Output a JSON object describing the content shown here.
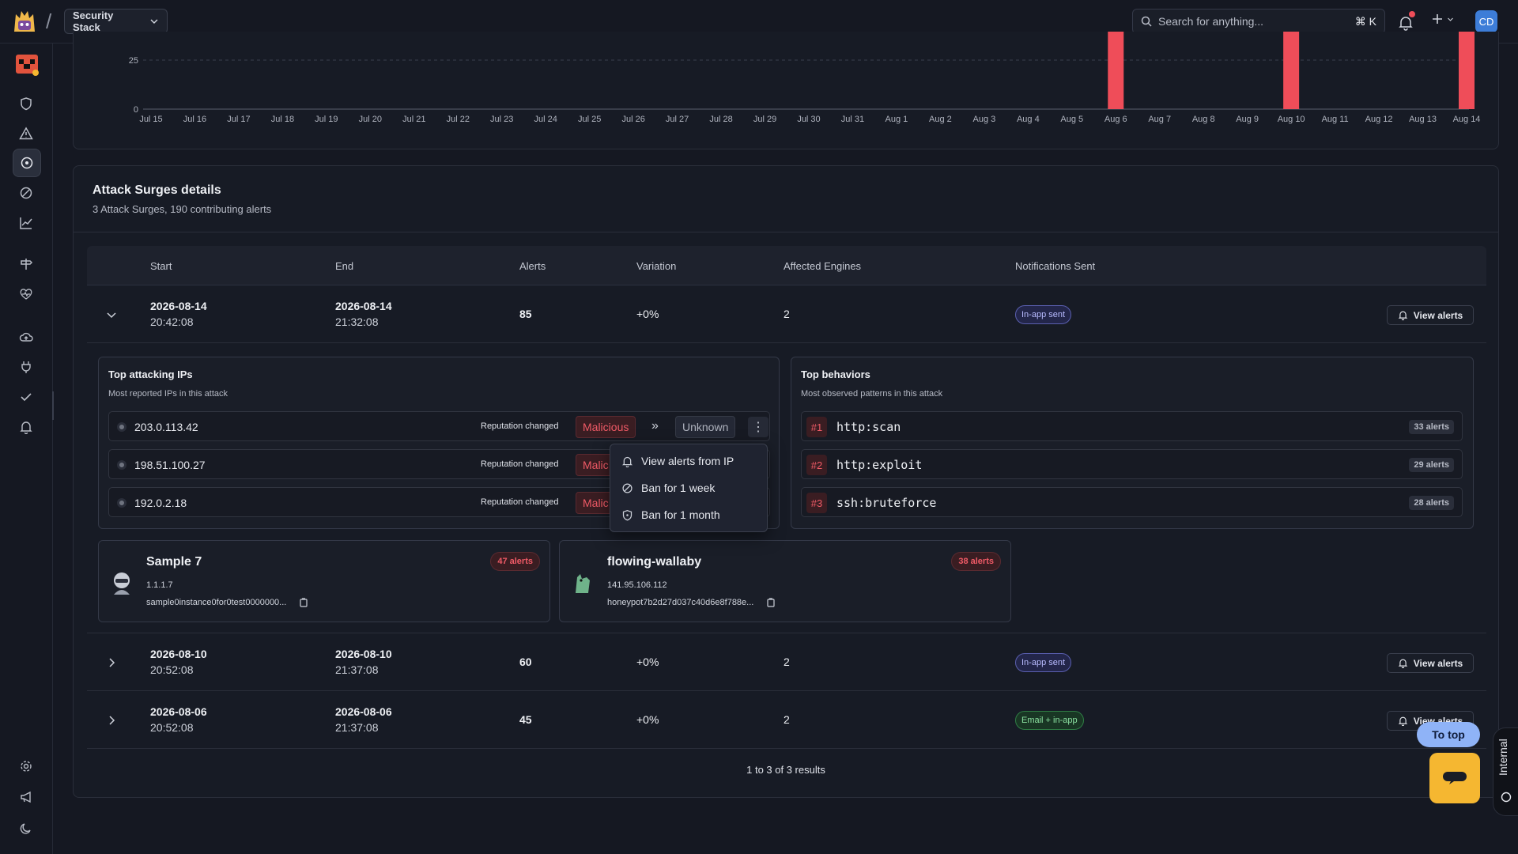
{
  "topbar": {
    "workspace": "Security Stack",
    "search_placeholder": "Search for anything...",
    "search_shortcut": "⌘ K",
    "avatar_initials": "CD"
  },
  "chart_data": {
    "type": "bar",
    "x": [
      "Jul 15",
      "Jul 16",
      "Jul 17",
      "Jul 18",
      "Jul 19",
      "Jul 20",
      "Jul 21",
      "Jul 22",
      "Jul 23",
      "Jul 24",
      "Jul 25",
      "Jul 26",
      "Jul 27",
      "Jul 28",
      "Jul 29",
      "Jul 30",
      "Jul 31",
      "Aug 1",
      "Aug 2",
      "Aug 3",
      "Aug 4",
      "Aug 5",
      "Aug 6",
      "Aug 7",
      "Aug 8",
      "Aug 9",
      "Aug 10",
      "Aug 11",
      "Aug 12",
      "Aug 13",
      "Aug 14"
    ],
    "values": [
      0,
      0,
      0,
      0,
      0,
      0,
      0,
      0,
      0,
      0,
      0,
      0,
      0,
      0,
      0,
      0,
      0,
      0,
      0,
      0,
      0,
      0,
      45,
      0,
      0,
      0,
      60,
      0,
      0,
      0,
      85
    ],
    "yticks": [
      0,
      25
    ],
    "bar_color": "#ef4d59",
    "grid": "dashed horizontal"
  },
  "details": {
    "title": "Attack Surges details",
    "subtitle": "3 Attack Surges, 190 contributing alerts",
    "columns": [
      "Start",
      "End",
      "Alerts",
      "Variation",
      "Affected Engines",
      "Notifications Sent"
    ],
    "rows": [
      {
        "start_date": "2026-08-14",
        "start_time": "20:42:08",
        "end_date": "2026-08-14",
        "end_time": "21:32:08",
        "alerts": "85",
        "variation": "+0%",
        "engines": "2",
        "notification": "In-app sent",
        "action": "View alerts"
      },
      {
        "start_date": "2026-08-10",
        "start_time": "20:52:08",
        "end_date": "2026-08-10",
        "end_time": "21:37:08",
        "alerts": "60",
        "variation": "+0%",
        "engines": "2",
        "notification": "In-app sent",
        "action": "View alerts"
      },
      {
        "start_date": "2026-08-06",
        "start_time": "20:52:08",
        "end_date": "2026-08-06",
        "end_time": "21:37:08",
        "alerts": "45",
        "variation": "+0%",
        "engines": "2",
        "notification": "Email + in-app",
        "action": "View alerts"
      }
    ],
    "top_ips": {
      "title": "Top attacking IPs",
      "subtitle": "Most reported IPs in this attack",
      "items": [
        {
          "ip": "203.0.113.42",
          "reputation_label": "Reputation changed",
          "from": "Malicious",
          "to": "Unknown"
        },
        {
          "ip": "198.51.100.27",
          "reputation_label": "Reputation changed",
          "from": "Malic",
          "to": ""
        },
        {
          "ip": "192.0.2.18",
          "reputation_label": "Reputation changed",
          "from": "Malic",
          "to": ""
        }
      ]
    },
    "top_behaviors": {
      "title": "Top behaviors",
      "subtitle": "Most observed patterns in this attack",
      "items": [
        {
          "rank": "#1",
          "name": "http:scan",
          "count": "33 alerts"
        },
        {
          "rank": "#2",
          "name": "http:exploit",
          "count": "29 alerts"
        },
        {
          "rank": "#3",
          "name": "ssh:bruteforce",
          "count": "28 alerts"
        }
      ]
    },
    "engines": [
      {
        "name": "Sample 7",
        "ip": "1.1.1.7",
        "id": "sample0instance0for0test0000000...",
        "alerts": "47 alerts"
      },
      {
        "name": "flowing-wallaby",
        "ip": "141.95.106.112",
        "id": "honeypot7b2d27d037c40d6e8f788e...",
        "alerts": "38 alerts"
      }
    ],
    "context_menu": [
      "View alerts from IP",
      "Ban for 1 week",
      "Ban for 1 month"
    ],
    "pagination": "1 to 3 of 3 results"
  },
  "floating": {
    "to_top": "To top",
    "internal": "Internal"
  },
  "sidebar": {
    "icons": [
      "shield-icon",
      "alert-triangle-icon",
      "target-icon",
      "ban-icon",
      "chart-line-icon",
      "signpost-icon",
      "heart-pulse-icon",
      "cloud-icon",
      "plug-icon",
      "check-icon",
      "bell-icon",
      "settings-icon",
      "megaphone-icon",
      "moon-icon"
    ]
  }
}
